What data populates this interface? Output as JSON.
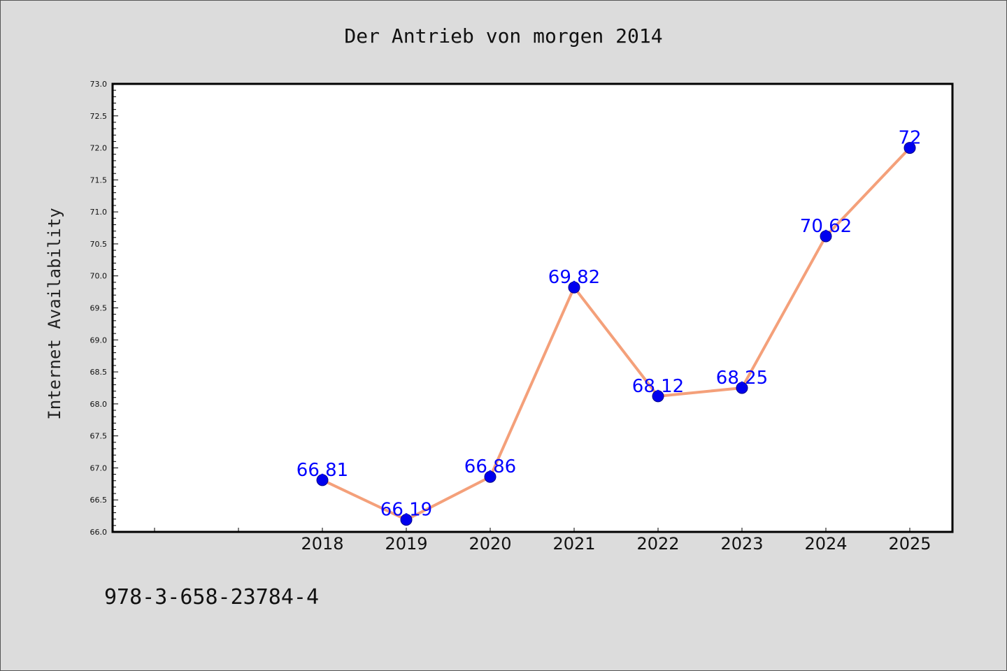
{
  "chart_data": {
    "type": "line",
    "title": "Der Antrieb von morgen 2014",
    "xlabel": "",
    "ylabel": "Internet Availability",
    "x": [
      "2018",
      "2019",
      "2020",
      "2021",
      "2022",
      "2023",
      "2024",
      "2025"
    ],
    "values": [
      66.81,
      66.19,
      66.86,
      69.82,
      68.12,
      68.25,
      70.62,
      72
    ],
    "data_labels": [
      "66.81",
      "66.19",
      "66.86",
      "69.82",
      "68.12",
      "68.25",
      "70.62",
      "72"
    ],
    "ylim": [
      66.0,
      73.0
    ],
    "yticks": [
      "66.0",
      "66.5",
      "67.0",
      "67.5",
      "68.0",
      "68.5",
      "69.0",
      "69.5",
      "70.0",
      "70.5",
      "71.0",
      "71.5",
      "72.0",
      "72.5",
      "73.0"
    ],
    "grid": false,
    "legend": "none"
  },
  "footer_text": "978-3-658-23784-4",
  "colors": {
    "background": "#dcdcdc",
    "plot_background": "#ffffff",
    "line": "#f4a07a",
    "marker": "#0000ee",
    "data_label": "#0000ff"
  }
}
